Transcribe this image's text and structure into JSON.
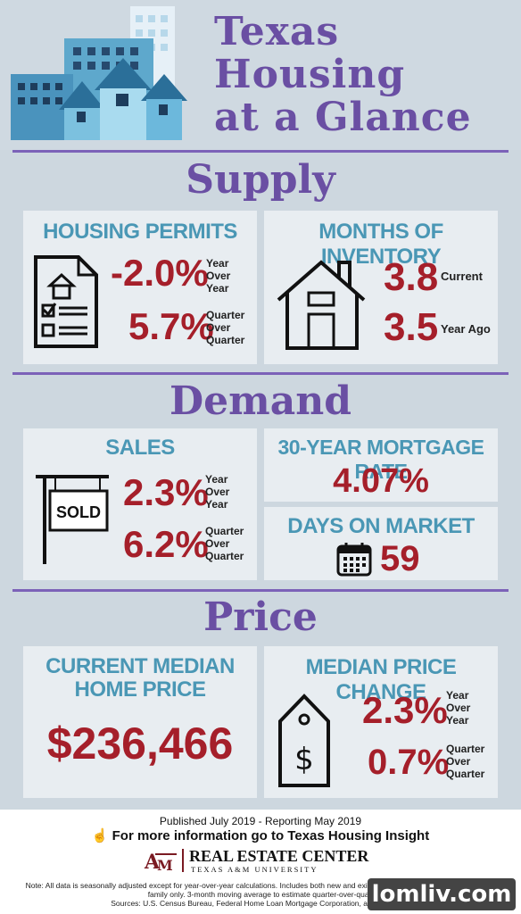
{
  "header": {
    "title_lines": [
      "Texas",
      "Housing",
      "at a Glance"
    ]
  },
  "sections": {
    "supply": "Supply",
    "demand": "Demand",
    "price": "Price"
  },
  "supply": {
    "permits": {
      "title": "HOUSING PERMITS",
      "yoy_value": "-2.0%",
      "yoy_label": [
        "Year",
        "Over",
        "Year"
      ],
      "qoq_value": "5.7%",
      "qoq_label": [
        "Quarter",
        "Over",
        "Quarter"
      ]
    },
    "inventory": {
      "title": "MONTHS OF INVENTORY",
      "current_value": "3.8",
      "current_label": "Current",
      "ago_value": "3.5",
      "ago_label": "Year Ago"
    }
  },
  "demand": {
    "sales": {
      "title": "SALES",
      "sign_text": "SOLD",
      "yoy_value": "2.3%",
      "yoy_label": [
        "Year",
        "Over",
        "Year"
      ],
      "qoq_value": "6.2%",
      "qoq_label": [
        "Quarter",
        "Over",
        "Quarter"
      ]
    },
    "mortgage": {
      "title": "30-YEAR MORTGAGE RATE",
      "value": "4.07%"
    },
    "days": {
      "title": "DAYS ON MARKET",
      "value": "59"
    }
  },
  "price": {
    "median": {
      "title_lines": [
        "CURRENT MEDIAN",
        "HOME PRICE"
      ],
      "value": "$236,466"
    },
    "change": {
      "title": "MEDIAN PRICE CHANGE",
      "yoy_value": "2.3%",
      "yoy_label": [
        "Year",
        "Over",
        "Year"
      ],
      "qoq_value": "0.7%",
      "qoq_label": [
        "Quarter",
        "Over",
        "Quarter"
      ]
    }
  },
  "footer": {
    "published": "Published July 2019 - Reporting May 2019",
    "more_info": "For more information go to Texas Housing Insight",
    "logo_name": "REAL ESTATE CENTER",
    "logo_sub": "TEXAS A&M UNIVERSITY",
    "note_lines": [
      "Note: All data is seasonally adjusted except for year-over-year calculations. Includes both new and existing homes. Housing permits for single-",
      "family only. 3-month moving average to estimate quarter-over-quarter",
      "Sources: U.S. Census Bureau, Federal Home Loan Mortgage Corporation, and Real Estate"
    ],
    "watermark": "lomliv.com"
  },
  "colors": {
    "purple": "#6a4fa3",
    "teal": "#4a97b5",
    "red": "#a51f2a",
    "background": "#cdd7df",
    "card": "#e8edf1"
  }
}
